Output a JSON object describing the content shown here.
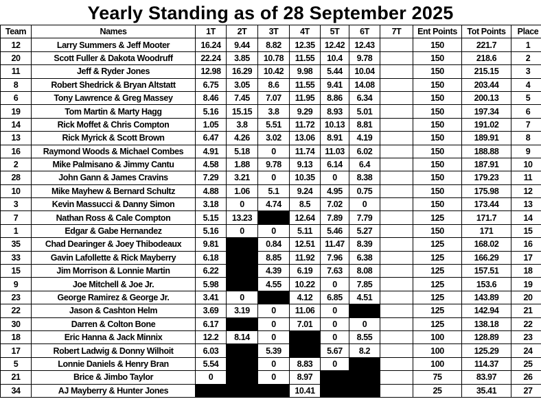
{
  "title": "Yearly Standing as of  28 September 2025",
  "columns": [
    "Team",
    "Names",
    "1T",
    "2T",
    "3T",
    "4T",
    "5T",
    "6T",
    "7T",
    "Ent Points",
    "Tot Points",
    "Place"
  ],
  "blacked_out_color": "#000000",
  "rows": [
    {
      "team": "12",
      "names": "Larry Summers & Jeff Mooter",
      "t": [
        "16.24",
        "9.44",
        "8.82",
        "12.35",
        "12.42",
        "12.43",
        ""
      ],
      "ent": "150",
      "tot": "221.7",
      "place": "1"
    },
    {
      "team": "20",
      "names": "Scott Fuller & Dakota Woodruff",
      "t": [
        "22.24",
        "3.85",
        "10.78",
        "11.55",
        "10.4",
        "9.78",
        ""
      ],
      "ent": "150",
      "tot": "218.6",
      "place": "2"
    },
    {
      "team": "11",
      "names": "Jeff & Ryder Jones",
      "t": [
        "12.98",
        "16.29",
        "10.42",
        "9.98",
        "5.44",
        "10.04",
        ""
      ],
      "ent": "150",
      "tot": "215.15",
      "place": "3"
    },
    {
      "team": "8",
      "names": "Robert Shedrick & Bryan Altstatt",
      "t": [
        "6.75",
        "3.05",
        "8.6",
        "11.55",
        "9.41",
        "14.08",
        ""
      ],
      "ent": "150",
      "tot": "203.44",
      "place": "4"
    },
    {
      "team": "6",
      "names": "Tony Lawrence & Greg Massey",
      "t": [
        "8.46",
        "7.45",
        "7.07",
        "11.95",
        "8.86",
        "6.34",
        ""
      ],
      "ent": "150",
      "tot": "200.13",
      "place": "5"
    },
    {
      "team": "19",
      "names": "Tom Martin & Marty Hagg",
      "t": [
        "5.16",
        "15.15",
        "3.8",
        "9.29",
        "8.93",
        "5.01",
        ""
      ],
      "ent": "150",
      "tot": "197.34",
      "place": "6"
    },
    {
      "team": "14",
      "names": "Rick Moffet & Chris Compton",
      "t": [
        "1.05",
        "3.8",
        "5.51",
        "11.72",
        "10.13",
        "8.81",
        ""
      ],
      "ent": "150",
      "tot": "191.02",
      "place": "7"
    },
    {
      "team": "13",
      "names": "Rick Myrick & Scott Brown",
      "t": [
        "6.47",
        "4.26",
        "3.02",
        "13.06",
        "8.91",
        "4.19",
        ""
      ],
      "ent": "150",
      "tot": "189.91",
      "place": "8"
    },
    {
      "team": "16",
      "names": "Raymond Woods & Michael Combes",
      "t": [
        "4.91",
        "5.18",
        "0",
        "11.74",
        "11.03",
        "6.02",
        ""
      ],
      "ent": "150",
      "tot": "188.88",
      "place": "9"
    },
    {
      "team": "2",
      "names": "Mike Palmisano & Jimmy Cantu",
      "t": [
        "4.58",
        "1.88",
        "9.78",
        "9.13",
        "6.14",
        "6.4",
        ""
      ],
      "ent": "150",
      "tot": "187.91",
      "place": "10"
    },
    {
      "team": "28",
      "names": "John Gann & James Cravins",
      "t": [
        "7.29",
        "3.21",
        "0",
        "10.35",
        "0",
        "8.38",
        ""
      ],
      "ent": "150",
      "tot": "179.23",
      "place": "11"
    },
    {
      "team": "10",
      "names": "Mike Mayhew & Bernard Schultz",
      "t": [
        "4.88",
        "1.06",
        "5.1",
        "9.24",
        "4.95",
        "0.75",
        ""
      ],
      "ent": "150",
      "tot": "175.98",
      "place": "12"
    },
    {
      "team": "3",
      "names": "Kevin Massucci & Danny Simon",
      "t": [
        "3.18",
        "0",
        "4.74",
        "8.5",
        "7.02",
        "0",
        ""
      ],
      "ent": "150",
      "tot": "173.44",
      "place": "13"
    },
    {
      "team": "7",
      "names": "Nathan Ross & Cale Compton",
      "t": [
        "5.15",
        "13.23",
        null,
        "12.64",
        "7.89",
        "7.79",
        ""
      ],
      "ent": "125",
      "tot": "171.7",
      "place": "14"
    },
    {
      "team": "1",
      "names": "Edgar & Gabe Hernandez",
      "t": [
        "5.16",
        "0",
        "0",
        "5.11",
        "5.46",
        "5.27",
        ""
      ],
      "ent": "150",
      "tot": "171",
      "place": "15"
    },
    {
      "team": "35",
      "names": "Chad Dearinger & Joey Thibodeaux",
      "t": [
        "9.81",
        null,
        "0.84",
        "12.51",
        "11.47",
        "8.39",
        ""
      ],
      "ent": "125",
      "tot": "168.02",
      "place": "16"
    },
    {
      "team": "33",
      "names": "Gavin Lafollette & Rick Mayberry",
      "t": [
        "6.18",
        null,
        "8.85",
        "11.92",
        "7.96",
        "6.38",
        ""
      ],
      "ent": "125",
      "tot": "166.29",
      "place": "17"
    },
    {
      "team": "15",
      "names": "Jim Morrison & Lonnie Martin",
      "t": [
        "6.22",
        null,
        "4.39",
        "6.19",
        "7.63",
        "8.08",
        ""
      ],
      "ent": "125",
      "tot": "157.51",
      "place": "18"
    },
    {
      "team": "9",
      "names": "Joe Mitchell & Joe Jr.",
      "t": [
        "5.98",
        null,
        "4.55",
        "10.22",
        "0",
        "7.85",
        ""
      ],
      "ent": "125",
      "tot": "153.6",
      "place": "19"
    },
    {
      "team": "23",
      "names": "George Ramirez & George Jr.",
      "t": [
        "3.41",
        "0",
        null,
        "4.12",
        "6.85",
        "4.51",
        ""
      ],
      "ent": "125",
      "tot": "143.89",
      "place": "20"
    },
    {
      "team": "22",
      "names": "Jason & Cashton Helm",
      "t": [
        "3.69",
        "3.19",
        "0",
        "11.06",
        "0",
        null,
        ""
      ],
      "ent": "125",
      "tot": "142.94",
      "place": "21"
    },
    {
      "team": "30",
      "names": "Darren & Colton Bone",
      "t": [
        "6.17",
        null,
        "0",
        "7.01",
        "0",
        "0",
        ""
      ],
      "ent": "125",
      "tot": "138.18",
      "place": "22"
    },
    {
      "team": "18",
      "names": "Eric Hanna & Jack Minnix",
      "t": [
        "12.2",
        "8.14",
        "0",
        null,
        "0",
        "8.55",
        ""
      ],
      "ent": "100",
      "tot": "128.89",
      "place": "23"
    },
    {
      "team": "17",
      "names": "Robert Ladwig & Donny Wilhoit",
      "t": [
        "6.03",
        null,
        "5.39",
        null,
        "5.67",
        "8.2",
        ""
      ],
      "ent": "100",
      "tot": "125.29",
      "place": "24"
    },
    {
      "team": "5",
      "names": "Lonnie Daniels & Henry Bran",
      "t": [
        "5.54",
        null,
        "0",
        "8.83",
        "0",
        null,
        ""
      ],
      "ent": "100",
      "tot": "114.37",
      "place": "25"
    },
    {
      "team": "21",
      "names": "Brice & Jimbo Taylor",
      "t": [
        "0",
        null,
        "0",
        "8.97",
        null,
        null,
        ""
      ],
      "ent": "75",
      "tot": "83.97",
      "place": "26"
    },
    {
      "team": "34",
      "names": "AJ Mayberry & Hunter Jones",
      "t": [
        null,
        null,
        null,
        "10.41",
        null,
        null,
        ""
      ],
      "ent": "25",
      "tot": "35.41",
      "place": "27"
    }
  ]
}
